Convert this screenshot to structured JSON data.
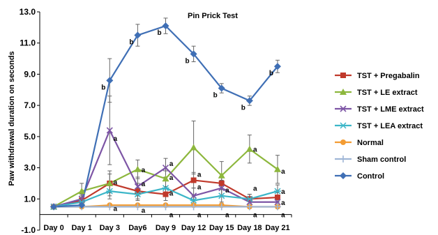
{
  "chart_data": {
    "type": "line",
    "title": "Pin Prick Test",
    "ylabel": "Paw withdrawal duration on seconds",
    "xlabel": "",
    "categories": [
      "Day 0",
      "Day 1",
      "Day 3",
      "Day6",
      "Day 9",
      "Day 12",
      "Day 15",
      "Day 18",
      "Day 21"
    ],
    "ylim": [
      -1.0,
      13.0
    ],
    "yticks": [
      "-1.0",
      "1.0",
      "3.0",
      "5.0",
      "7.0",
      "9.0",
      "11.0",
      "13.0"
    ],
    "series": [
      {
        "name": "TST + Pregabalin",
        "color": "#c0392b",
        "marker": "square",
        "values": [
          0.5,
          0.9,
          2.0,
          1.5,
          1.3,
          2.2,
          2.0,
          1.0,
          1.1
        ],
        "errors": [
          0.1,
          0.3,
          0.8,
          0.5,
          0.4,
          0.5,
          0.4,
          0.3,
          0.3
        ]
      },
      {
        "name": "TST + LE extract",
        "color": "#8db73d",
        "marker": "triangle",
        "values": [
          0.5,
          1.5,
          2.0,
          2.9,
          2.3,
          4.3,
          2.5,
          4.2,
          2.9
        ],
        "errors": [
          0.1,
          0.5,
          0.6,
          0.6,
          0.5,
          1.7,
          0.9,
          0.9,
          0.9
        ]
      },
      {
        "name": "TST + LME extract",
        "color": "#7d55a5",
        "marker": "x",
        "values": [
          0.5,
          1.0,
          5.4,
          1.8,
          3.0,
          1.2,
          1.7,
          0.8,
          0.8
        ],
        "errors": [
          0.1,
          0.3,
          2.2,
          0.6,
          0.6,
          0.5,
          0.5,
          0.3,
          0.3
        ]
      },
      {
        "name": "TST + LEA extract",
        "color": "#3cb6c8",
        "marker": "star",
        "values": [
          0.5,
          0.8,
          1.5,
          1.3,
          1.7,
          0.9,
          1.2,
          1.0,
          1.5
        ],
        "errors": [
          0.1,
          0.3,
          0.5,
          0.4,
          0.5,
          0.3,
          0.4,
          0.3,
          0.4
        ]
      },
      {
        "name": "Normal",
        "color": "#f39c33",
        "marker": "circle",
        "values": [
          0.5,
          0.5,
          0.6,
          0.6,
          0.6,
          0.6,
          0.6,
          0.5,
          0.5
        ],
        "errors": [
          0.05,
          0.05,
          0.05,
          0.05,
          0.05,
          0.05,
          0.05,
          0.05,
          0.05
        ]
      },
      {
        "name": "Sham control",
        "color": "#9fb6d6",
        "marker": "plus",
        "values": [
          0.5,
          0.5,
          0.5,
          0.5,
          0.5,
          0.5,
          0.5,
          0.5,
          0.5
        ],
        "errors": [
          0.05,
          0.05,
          0.05,
          0.05,
          0.05,
          0.05,
          0.05,
          0.05,
          0.05
        ]
      },
      {
        "name": "Control",
        "color": "#3f6fb5",
        "marker": "diamond",
        "values": [
          0.5,
          0.6,
          8.6,
          11.5,
          12.1,
          10.3,
          8.1,
          7.3,
          9.5
        ],
        "errors": [
          0.1,
          0.2,
          1.4,
          0.7,
          0.5,
          0.5,
          0.3,
          0.3,
          0.4
        ]
      }
    ],
    "annotations": [
      {
        "text": "b",
        "x": "Day 3",
        "y": 8.2
      },
      {
        "text": "b",
        "x": "Day6",
        "y": 11.1
      },
      {
        "text": "b",
        "x": "Day 9",
        "y": 11.7
      },
      {
        "text": "b",
        "x": "Day 12",
        "y": 9.9
      },
      {
        "text": "b",
        "x": "Day 15",
        "y": 7.7
      },
      {
        "text": "b",
        "x": "Day 18",
        "y": 6.9
      },
      {
        "text": "b",
        "x": "Day 21",
        "y": 9.1
      },
      {
        "text": "a",
        "x": "Day 3",
        "y": 4.9
      },
      {
        "text": "a",
        "x": "Day 3",
        "y": 2.1
      },
      {
        "text": "a",
        "x": "Day 3",
        "y": 0.4
      },
      {
        "text": "a",
        "x": "Day6",
        "y": 2.9
      },
      {
        "text": "a",
        "x": "Day6",
        "y": 2.0
      },
      {
        "text": "a",
        "x": "Day6",
        "y": 0.3
      },
      {
        "text": "a",
        "x": "Day 9",
        "y": 3.3
      },
      {
        "text": "a",
        "x": "Day 9",
        "y": 2.4
      },
      {
        "text": "a",
        "x": "Day 9",
        "y": 1.4
      },
      {
        "text": "a",
        "x": "Day 9",
        "y": 0.0
      },
      {
        "text": "a",
        "x": "Day 12",
        "y": 2.6
      },
      {
        "text": "a",
        "x": "Day 12",
        "y": 1.8
      },
      {
        "text": "a",
        "x": "Day 12",
        "y": 0.0
      },
      {
        "text": "a",
        "x": "Day 15",
        "y": 1.6
      },
      {
        "text": "a",
        "x": "Day 15",
        "y": 0.0
      },
      {
        "text": "a",
        "x": "Day 18",
        "y": 4.2
      },
      {
        "text": "a",
        "x": "Day 18",
        "y": 1.7
      },
      {
        "text": "a",
        "x": "Day 18",
        "y": 0.0
      },
      {
        "text": "a",
        "x": "Day 21",
        "y": 2.8
      },
      {
        "text": "a",
        "x": "Day 21",
        "y": 1.5
      },
      {
        "text": "a",
        "x": "Day 21",
        "y": 0.8
      },
      {
        "text": "a",
        "x": "Day 21",
        "y": 0.0
      }
    ],
    "legend_position": "right",
    "grid": false
  }
}
